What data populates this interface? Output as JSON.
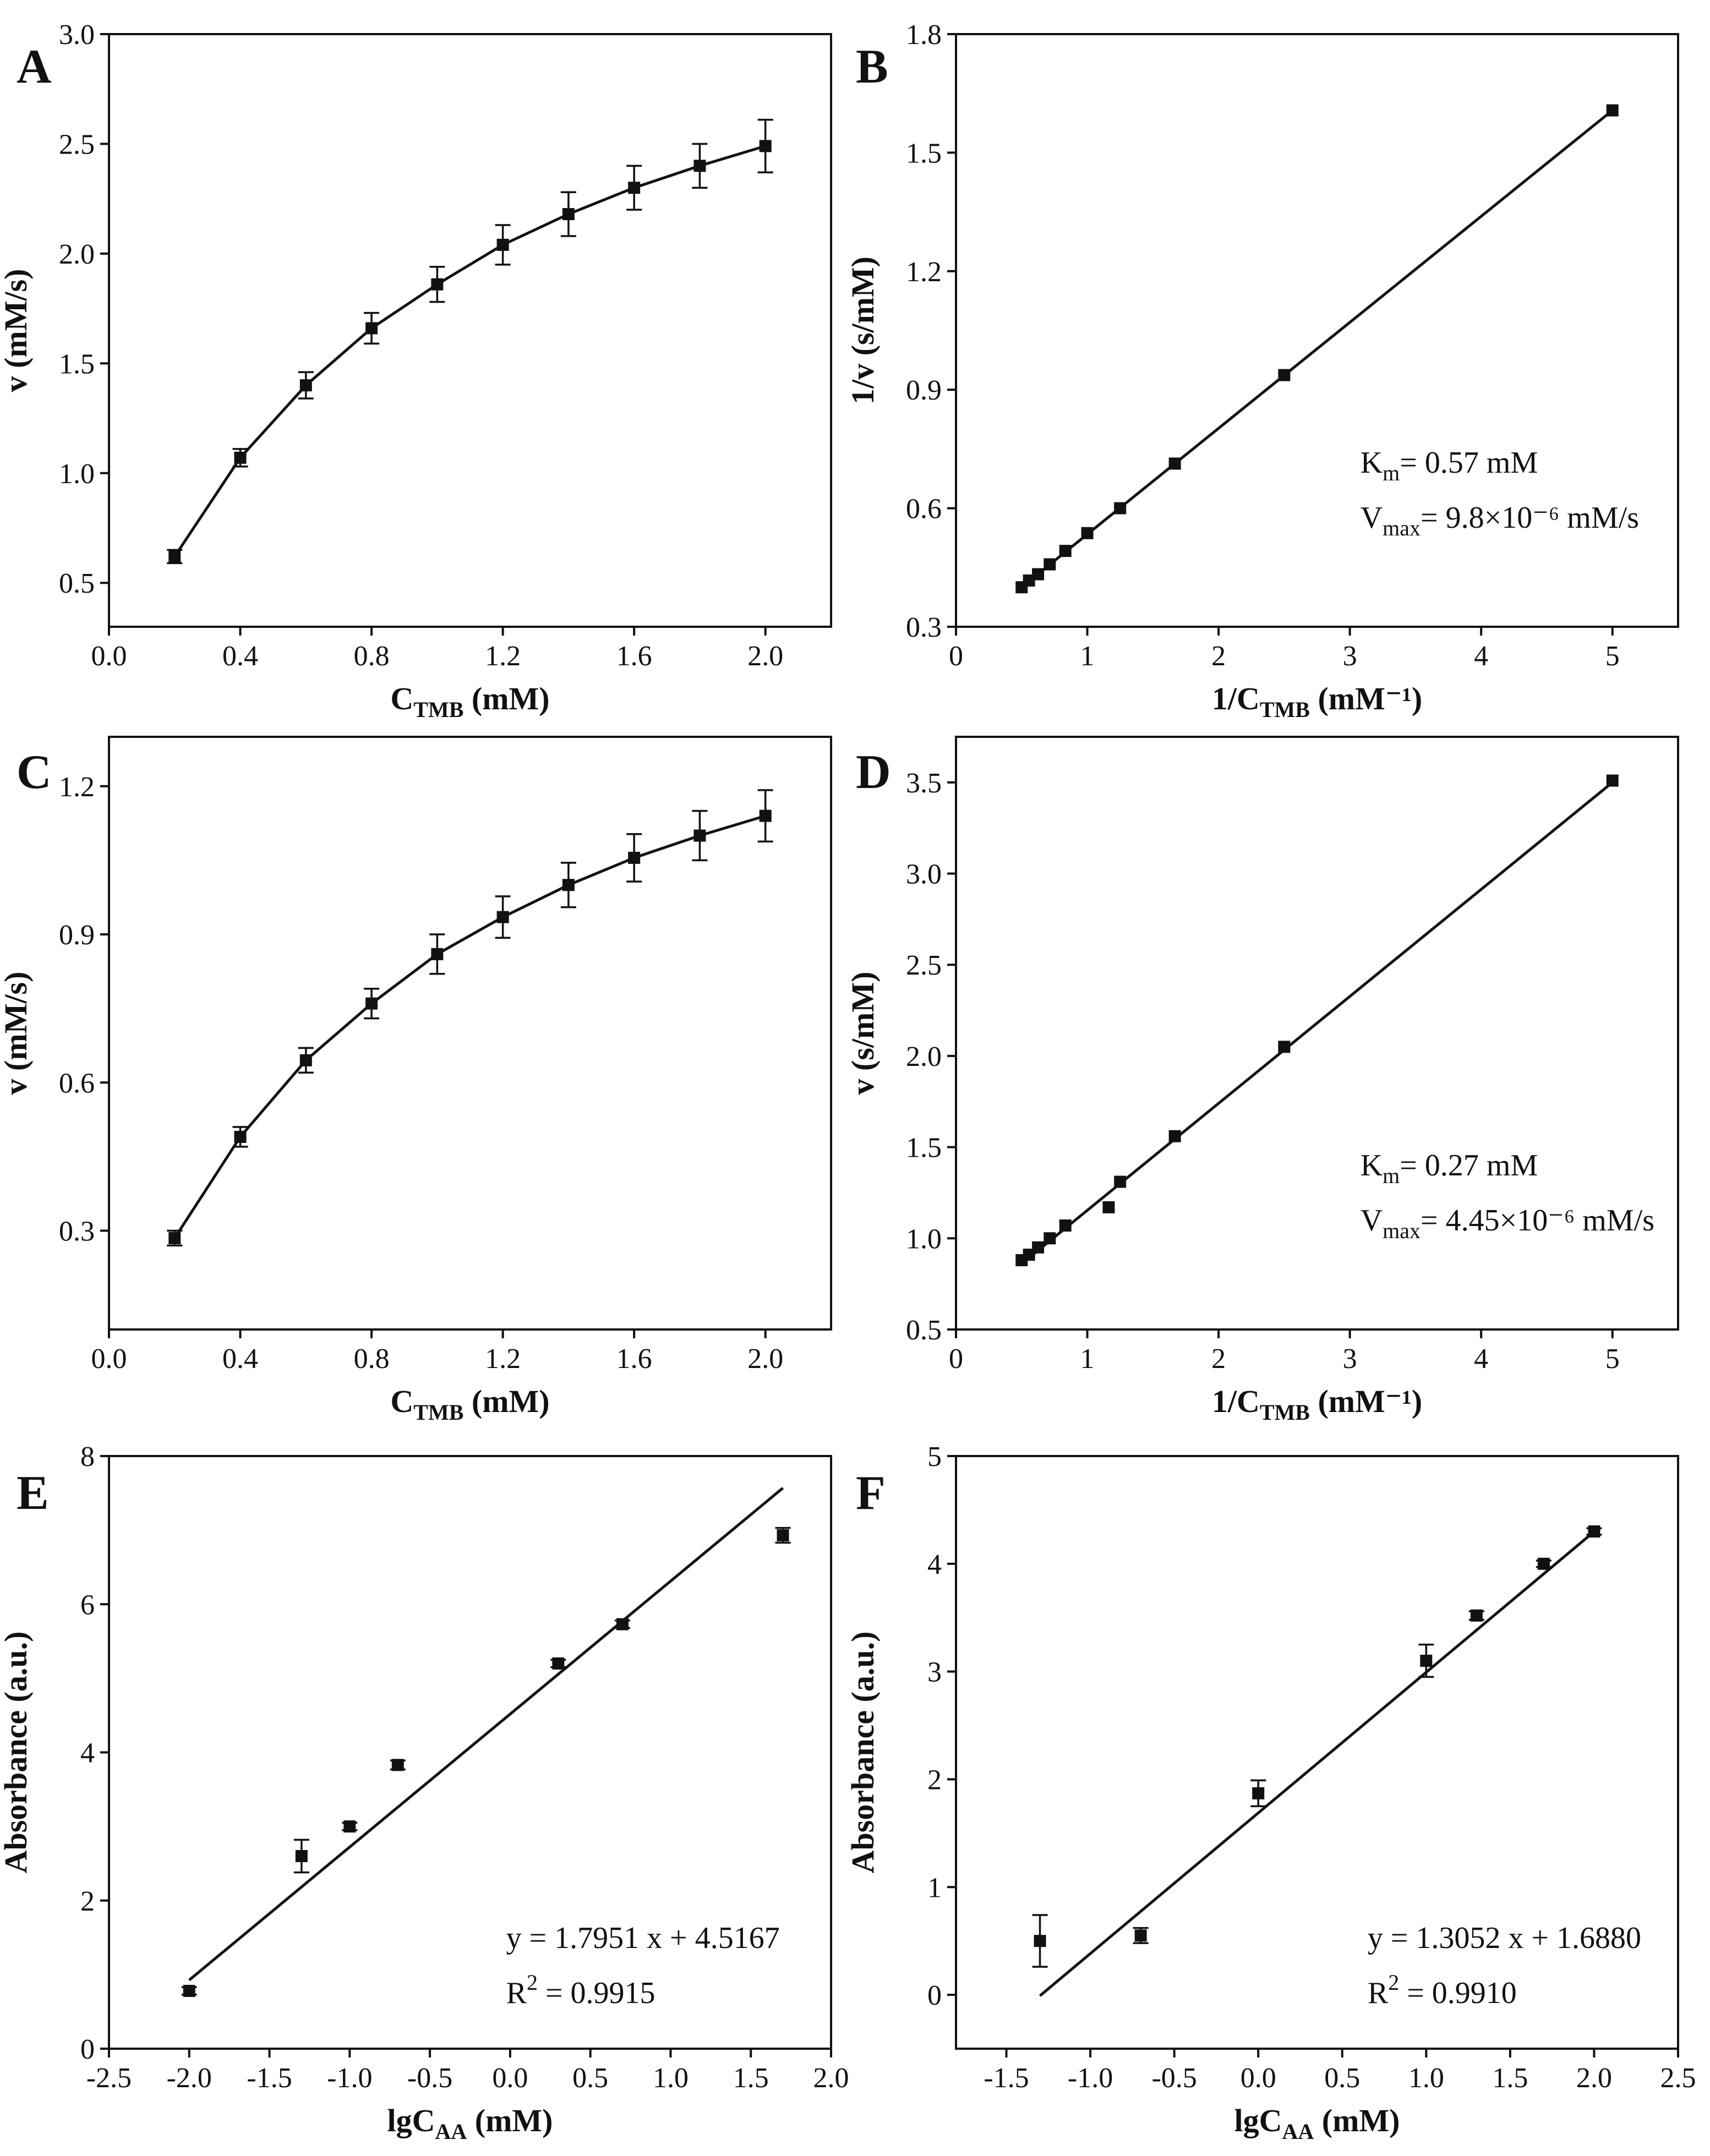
{
  "chart_data": [
    {
      "panel": "A",
      "type": "line",
      "x": [
        0.2,
        0.4,
        0.6,
        0.8,
        1.0,
        1.2,
        1.4,
        1.6,
        1.8,
        2.0
      ],
      "y": [
        0.62,
        1.07,
        1.4,
        1.66,
        1.86,
        2.04,
        2.18,
        2.3,
        2.4,
        2.49
      ],
      "err": [
        0.03,
        0.04,
        0.06,
        0.07,
        0.08,
        0.09,
        0.1,
        0.1,
        0.1,
        0.12
      ],
      "xlim": [
        0.0,
        2.2
      ],
      "ylim": [
        0.3,
        3.0
      ],
      "xticks": [
        "0.0",
        "0.4",
        "0.8",
        "1.2",
        "1.6",
        "2.0"
      ],
      "yticks": [
        "0.5",
        "1.0",
        "1.5",
        "2.0",
        "2.5",
        "3.0"
      ],
      "xlabel": {
        "main": "C",
        "sub": "TMB",
        "tail": " (mM)"
      },
      "ylabel": "v (mM/s)",
      "annotation": []
    },
    {
      "panel": "B",
      "type": "scatter",
      "x": [
        0.5,
        0.556,
        0.625,
        0.714,
        0.833,
        1.0,
        1.25,
        1.667,
        2.5,
        5.0
      ],
      "y": [
        0.4,
        0.417,
        0.433,
        0.458,
        0.492,
        0.537,
        0.6,
        0.713,
        0.937,
        1.607
      ],
      "err": [],
      "fit": {
        "x": [
          0.5,
          5.0
        ],
        "y": [
          0.4,
          1.607
        ]
      },
      "xlim": [
        0,
        5.5
      ],
      "ylim": [
        0.3,
        1.8
      ],
      "xticks": [
        "0",
        "1",
        "2",
        "3",
        "4",
        "5"
      ],
      "yticks": [
        "0.3",
        "0.6",
        "0.9",
        "1.2",
        "1.5",
        "1.8"
      ],
      "xlabel": {
        "main": "1/C",
        "sub": "TMB",
        "tail": " (mM⁻¹)"
      },
      "ylabel": "1/v (s/mM)",
      "annotation": [
        {
          "main": "K",
          "sub": "m",
          "tail": "= 0.57 mM"
        },
        {
          "main": "V",
          "sub": "max",
          "tail": "= 9.8×10⁻⁶ mM/s"
        }
      ]
    },
    {
      "panel": "C",
      "type": "line",
      "x": [
        0.2,
        0.4,
        0.6,
        0.8,
        1.0,
        1.2,
        1.4,
        1.6,
        1.8,
        2.0
      ],
      "y": [
        0.285,
        0.49,
        0.645,
        0.76,
        0.86,
        0.935,
        1.0,
        1.055,
        1.1,
        1.14
      ],
      "err": [
        0.015,
        0.02,
        0.025,
        0.03,
        0.04,
        0.042,
        0.045,
        0.048,
        0.05,
        0.052
      ],
      "xlim": [
        0.0,
        2.2
      ],
      "ylim": [
        0.1,
        1.3
      ],
      "xticks": [
        "0.0",
        "0.4",
        "0.8",
        "1.2",
        "1.6",
        "2.0"
      ],
      "yticks": [
        "0.3",
        "0.6",
        "0.9",
        "1.2"
      ],
      "xlabel": {
        "main": "C",
        "sub": "TMB",
        "tail": " (mM)"
      },
      "ylabel": "v (mM/s)",
      "annotation": []
    },
    {
      "panel": "D",
      "type": "scatter",
      "x": [
        0.5,
        0.556,
        0.625,
        0.714,
        0.833,
        1.163,
        1.25,
        1.667,
        2.5,
        5.0
      ],
      "y": [
        0.88,
        0.91,
        0.95,
        1.0,
        1.07,
        1.17,
        1.31,
        1.56,
        2.05,
        3.51
      ],
      "err": [],
      "fit": {
        "x": [
          0.5,
          5.0
        ],
        "y": [
          0.86,
          3.5
        ]
      },
      "xlim": [
        0,
        5.5
      ],
      "ylim": [
        0.5,
        3.75
      ],
      "xticks": [
        "0",
        "1",
        "2",
        "3",
        "4",
        "5"
      ],
      "yticks": [
        "0.5",
        "1.0",
        "1.5",
        "2.0",
        "2.5",
        "3.0",
        "3.5"
      ],
      "xlabel": {
        "main": "1/C",
        "sub": "TMB",
        "tail": " (mM⁻¹)"
      },
      "ylabel": "v (s/mM)",
      "annotation": [
        {
          "main": "K",
          "sub": "m",
          "tail": "= 0.27 mM"
        },
        {
          "main": "V",
          "sub": "max",
          "tail": "= 4.45×10⁻⁶ mM/s"
        }
      ]
    },
    {
      "panel": "E",
      "type": "scatter",
      "x": [
        -2.0,
        -1.3,
        -1.0,
        -0.7,
        0.3,
        0.7,
        1.7
      ],
      "y": [
        0.78,
        2.6,
        3.0,
        3.83,
        5.2,
        5.73,
        6.93
      ],
      "err": [
        0.05,
        0.22,
        0.05,
        0.06,
        0.05,
        0.05,
        0.1
      ],
      "fit": {
        "x": [
          -2.0,
          1.7
        ],
        "y": [
          0.9265,
          7.5684
        ]
      },
      "xlim": [
        -2.5,
        2.0
      ],
      "ylim": [
        0,
        8
      ],
      "xticks": [
        "-2.5",
        "-2.0",
        "-1.5",
        "-1.0",
        "-0.5",
        "0.0",
        "0.5",
        "1.0",
        "1.5",
        "2.0"
      ],
      "yticks": [
        "0",
        "2",
        "4",
        "6",
        "8"
      ],
      "xlabel": {
        "main": "lgC",
        "sub": "AA",
        "tail": " (mM)"
      },
      "ylabel": "Absorbance (a.u.)",
      "annotation": [
        {
          "main": "y = 1.7951 x + 4.5167",
          "sub": "",
          "tail": ""
        },
        {
          "main": "R",
          "sup": "2",
          "tail": " = 0.9915"
        }
      ]
    },
    {
      "panel": "F",
      "type": "scatter",
      "x": [
        -1.3,
        -0.7,
        0.0,
        1.0,
        1.3,
        1.7,
        2.0
      ],
      "y": [
        0.5,
        0.55,
        1.87,
        3.1,
        3.52,
        4.0,
        4.3
      ],
      "err": [
        0.24,
        0.07,
        0.12,
        0.15,
        0.04,
        0.03,
        0.03
      ],
      "fit": {
        "x": [
          -1.3,
          2.0
        ],
        "y": [
          -0.0088,
          4.2984
        ]
      },
      "xlim": [
        -1.8,
        2.5
      ],
      "ylim": [
        -0.5,
        5
      ],
      "xticks": [
        "-1.5",
        "-1.0",
        "-0.5",
        "0.0",
        "0.5",
        "1.0",
        "1.5",
        "2.0",
        "2.5"
      ],
      "yticks": [
        "0",
        "1",
        "2",
        "3",
        "4",
        "5"
      ],
      "xlabel": {
        "main": "lgC",
        "sub": "AA",
        "tail": " (mM)"
      },
      "ylabel": "Absorbance (a.u.)",
      "annotation": [
        {
          "main": "y = 1.3052 x + 1.6880",
          "sub": "",
          "tail": ""
        },
        {
          "main": "R",
          "sup": "2",
          "tail": " = 0.9910"
        }
      ]
    }
  ]
}
